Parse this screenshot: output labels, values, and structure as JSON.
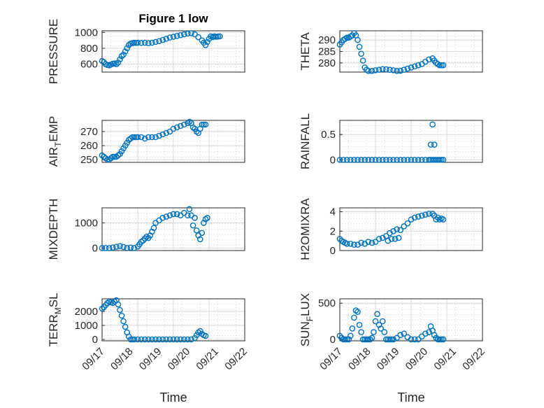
{
  "chart_data": [
    {
      "type": "scatter",
      "title": "Figure 1 low",
      "ylabel": "PRESSURE",
      "ylim": [
        500,
        1020
      ],
      "yticks": [
        "1000",
        "800",
        "600"
      ],
      "xlim": [
        0,
        4
      ],
      "series": [
        {
          "x": [
            0.0,
            0.05,
            0.1,
            0.15,
            0.2,
            0.25,
            0.3,
            0.35,
            0.4,
            0.45,
            0.5,
            0.55,
            0.6,
            0.65,
            0.7,
            0.75,
            0.8,
            0.85,
            0.9,
            0.95,
            1.0,
            1.1,
            1.2,
            1.3,
            1.4,
            1.5,
            1.6,
            1.7,
            1.8,
            1.9,
            2.0,
            2.1,
            2.2,
            2.3,
            2.4,
            2.5,
            2.6,
            2.7,
            2.8,
            2.85,
            2.9,
            2.95,
            3.0,
            3.05,
            3.1,
            3.15,
            3.2,
            3.25,
            3.3
          ],
          "y": [
            640,
            625,
            600,
            590,
            585,
            595,
            605,
            610,
            600,
            620,
            660,
            700,
            720,
            760,
            800,
            840,
            860,
            865,
            870,
            868,
            870,
            868,
            870,
            865,
            870,
            880,
            890,
            905,
            920,
            935,
            945,
            955,
            965,
            975,
            985,
            990,
            975,
            940,
            900,
            870,
            840,
            880,
            920,
            950,
            940,
            950,
            945,
            948,
            950
          ]
        }
      ]
    },
    {
      "type": "scatter",
      "ylabel": "THETA",
      "ylim": [
        276,
        294
      ],
      "yticks": [
        "290",
        "285",
        "280"
      ],
      "xlim": [
        0,
        4
      ],
      "series": [
        {
          "x": [
            0.0,
            0.05,
            0.1,
            0.15,
            0.2,
            0.25,
            0.3,
            0.35,
            0.4,
            0.45,
            0.5,
            0.55,
            0.6,
            0.65,
            0.7,
            0.75,
            0.8,
            0.9,
            1.0,
            1.1,
            1.2,
            1.3,
            1.4,
            1.5,
            1.6,
            1.7,
            1.8,
            1.9,
            2.0,
            2.1,
            2.2,
            2.3,
            2.4,
            2.5,
            2.6,
            2.65,
            2.7,
            2.75,
            2.8,
            2.85,
            2.9
          ],
          "y": [
            288,
            289,
            290,
            290.5,
            291,
            291,
            291.5,
            292,
            293,
            292,
            290,
            287,
            284,
            281,
            278,
            277,
            276.5,
            276.5,
            276.8,
            277,
            277.3,
            277.2,
            277,
            276.8,
            276.5,
            276.6,
            277,
            277.5,
            278,
            278.5,
            279,
            279.5,
            280.5,
            281.5,
            282,
            281,
            280,
            279.5,
            279,
            279,
            279
          ]
        }
      ]
    },
    {
      "type": "scatter",
      "ylabel": "AIR_TEMP",
      "ylim": [
        248,
        278
      ],
      "yticks": [
        "270",
        "260",
        "250"
      ],
      "xlim": [
        0,
        4
      ],
      "series": [
        {
          "x": [
            0.0,
            0.05,
            0.1,
            0.15,
            0.2,
            0.25,
            0.3,
            0.35,
            0.4,
            0.45,
            0.5,
            0.55,
            0.6,
            0.65,
            0.7,
            0.75,
            0.8,
            0.85,
            0.9,
            0.95,
            1.0,
            1.1,
            1.2,
            1.3,
            1.4,
            1.5,
            1.6,
            1.7,
            1.8,
            1.9,
            2.0,
            2.1,
            2.2,
            2.3,
            2.4,
            2.45,
            2.5,
            2.55,
            2.6,
            2.65,
            2.7,
            2.75,
            2.8,
            2.85,
            2.9
          ],
          "y": [
            253,
            252,
            251,
            250,
            250,
            251,
            252,
            252,
            252,
            253,
            254,
            256,
            258,
            260,
            262,
            264,
            265,
            266,
            266,
            266,
            266,
            266,
            265,
            266,
            266,
            266,
            267,
            268,
            269,
            270,
            272,
            273,
            274,
            275,
            276,
            277,
            276,
            273,
            272,
            270,
            269,
            272,
            275,
            275,
            275
          ]
        }
      ]
    },
    {
      "type": "scatter",
      "ylabel": "RAINFALL",
      "ylim": [
        -0.05,
        0.78
      ],
      "yticks": [
        "0.5",
        "0"
      ],
      "xlim": [
        0,
        4
      ],
      "series": [
        {
          "x": [
            0.0,
            0.1,
            0.2,
            0.3,
            0.4,
            0.5,
            0.6,
            0.7,
            0.8,
            0.9,
            1.0,
            1.1,
            1.2,
            1.3,
            1.4,
            1.5,
            1.6,
            1.7,
            1.8,
            1.9,
            2.0,
            2.1,
            2.2,
            2.3,
            2.4,
            2.5,
            2.55,
            2.6,
            2.65,
            2.7,
            2.75,
            2.8,
            2.85,
            2.9,
            2.55,
            2.65,
            2.6
          ],
          "y": [
            0,
            0,
            0,
            0,
            0,
            0,
            0,
            0,
            0,
            0,
            0,
            0,
            0,
            0,
            0,
            0,
            0,
            0,
            0,
            0,
            0,
            0,
            0,
            0,
            0,
            0,
            0,
            0,
            0,
            0,
            0,
            0,
            0,
            0,
            0.3,
            0.3,
            0.7
          ]
        }
      ]
    },
    {
      "type": "scatter",
      "ylabel": "MIXDEPTH",
      "ylim": [
        -100,
        1600
      ],
      "yticks": [
        "1000",
        "0"
      ],
      "xlim": [
        0,
        4
      ],
      "series": [
        {
          "x": [
            0.0,
            0.1,
            0.2,
            0.3,
            0.4,
            0.5,
            0.6,
            0.7,
            0.8,
            0.9,
            1.0,
            1.05,
            1.1,
            1.15,
            1.2,
            1.25,
            1.3,
            1.35,
            1.4,
            1.45,
            1.5,
            1.6,
            1.7,
            1.8,
            1.9,
            2.0,
            2.1,
            2.2,
            2.3,
            2.4,
            2.45,
            2.5,
            2.55,
            2.6,
            2.65,
            2.7,
            2.75,
            2.8,
            2.85,
            2.9,
            2.95
          ],
          "y": [
            0,
            0,
            0,
            20,
            50,
            80,
            40,
            0,
            20,
            0,
            60,
            150,
            250,
            300,
            380,
            450,
            400,
            500,
            650,
            800,
            1000,
            1100,
            1200,
            1250,
            1300,
            1350,
            1350,
            1300,
            1400,
            1300,
            1550,
            1300,
            900,
            1200,
            700,
            500,
            350,
            600,
            1000,
            1150,
            1200
          ]
        }
      ]
    },
    {
      "type": "scatter",
      "ylabel": "H2OMIXRA",
      "ylim": [
        0,
        4.4
      ],
      "yticks": [
        "4",
        "2",
        "0"
      ],
      "xlim": [
        0,
        4
      ],
      "series": [
        {
          "x": [
            0.0,
            0.05,
            0.1,
            0.15,
            0.2,
            0.3,
            0.4,
            0.5,
            0.6,
            0.7,
            0.8,
            0.9,
            1.0,
            1.1,
            1.2,
            1.3,
            1.35,
            1.4,
            1.45,
            1.5,
            1.55,
            1.6,
            1.65,
            1.7,
            1.8,
            1.9,
            2.0,
            2.1,
            2.2,
            2.3,
            2.4,
            2.5,
            2.6,
            2.65,
            2.7,
            2.75,
            2.8,
            2.85,
            2.9
          ],
          "y": [
            1.2,
            1.0,
            0.9,
            0.8,
            0.7,
            0.7,
            0.6,
            0.6,
            0.8,
            0.7,
            0.9,
            0.8,
            0.9,
            1.2,
            1.3,
            1.5,
            1.0,
            1.8,
            1.2,
            2.0,
            1.2,
            2.2,
            1.3,
            2.1,
            2.5,
            2.8,
            3.2,
            3.4,
            3.5,
            3.6,
            3.7,
            3.8,
            3.8,
            3.6,
            3.2,
            3.4,
            3.2,
            3.3,
            3.2
          ]
        }
      ]
    },
    {
      "type": "scatter",
      "ylabel": "TERR_MSL",
      "ylim": [
        -100,
        2900
      ],
      "yticks": [
        "2000",
        "1000",
        "0"
      ],
      "xlim": [
        0,
        4
      ],
      "xticks": [
        "09/17",
        "09/18",
        "09/19",
        "09/20",
        "09/21",
        "09/22"
      ],
      "xlabel": "Time",
      "series": [
        {
          "x": [
            0.0,
            0.05,
            0.1,
            0.15,
            0.2,
            0.25,
            0.3,
            0.35,
            0.4,
            0.45,
            0.5,
            0.55,
            0.6,
            0.65,
            0.7,
            0.75,
            0.8,
            0.85,
            0.9,
            1.0,
            1.1,
            1.2,
            1.3,
            1.4,
            1.5,
            1.6,
            1.7,
            1.8,
            1.9,
            2.0,
            2.1,
            2.2,
            2.3,
            2.4,
            2.5,
            2.6,
            2.65,
            2.7,
            2.75,
            2.8,
            2.85,
            2.9
          ],
          "y": [
            2200,
            2300,
            2450,
            2600,
            2700,
            2650,
            2600,
            2700,
            2800,
            2500,
            2100,
            1700,
            1300,
            900,
            500,
            200,
            0,
            0,
            0,
            0,
            0,
            0,
            0,
            0,
            0,
            0,
            0,
            0,
            0,
            0,
            0,
            0,
            0,
            0,
            0,
            100,
            300,
            500,
            600,
            400,
            300,
            250
          ]
        }
      ]
    },
    {
      "type": "scatter",
      "ylabel": "SUN_FLUX",
      "ylim": [
        -20,
        560
      ],
      "yticks": [
        "500",
        "0"
      ],
      "xlim": [
        0,
        4
      ],
      "xticks": [
        "09/17",
        "09/18",
        "09/19",
        "09/20",
        "09/21",
        "09/22"
      ],
      "xlabel": "Time",
      "series": [
        {
          "x": [
            0.0,
            0.05,
            0.1,
            0.15,
            0.2,
            0.25,
            0.3,
            0.35,
            0.4,
            0.45,
            0.5,
            0.55,
            0.6,
            0.65,
            0.7,
            0.75,
            0.8,
            0.85,
            0.9,
            0.95,
            1.0,
            1.05,
            1.1,
            1.15,
            1.2,
            1.25,
            1.3,
            1.35,
            1.4,
            1.45,
            1.5,
            1.6,
            1.7,
            1.8,
            1.9,
            2.0,
            2.1,
            2.2,
            2.3,
            2.4,
            2.5,
            2.55,
            2.6,
            2.65,
            2.7,
            2.75,
            2.8,
            2.85,
            2.9
          ],
          "y": [
            50,
            20,
            0,
            0,
            0,
            0,
            50,
            150,
            300,
            400,
            380,
            200,
            100,
            0,
            0,
            0,
            0,
            0,
            20,
            100,
            250,
            350,
            200,
            150,
            250,
            100,
            0,
            0,
            0,
            0,
            0,
            20,
            60,
            80,
            30,
            0,
            0,
            0,
            40,
            80,
            100,
            180,
            120,
            60,
            20,
            0,
            0,
            0,
            0
          ]
        }
      ]
    }
  ]
}
